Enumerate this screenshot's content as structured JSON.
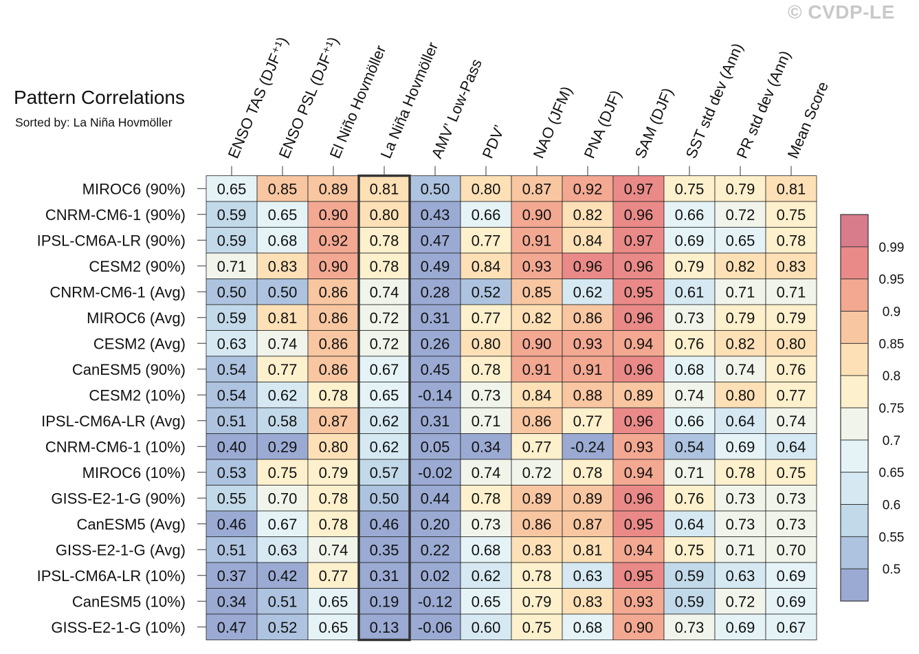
{
  "watermark": "© CVDP-LE",
  "chart_data": {
    "type": "heatmap",
    "title": "Pattern Correlations",
    "subtitle": "Sorted by: La Niña Hovmöller",
    "highlighted_column": "La Niña Hovmöller",
    "columns": [
      "ENSO TAS (DJF⁺¹)",
      "ENSO PSL (DJF⁺¹)",
      "El Niño Hovmöller",
      "La Niña Hovmöller",
      "AMV’ Low-Pass",
      "PDV’",
      "NAO (JFM)",
      "PNA (DJF)",
      "SAM (DJF)",
      "SST std dev (Ann)",
      "PR std dev (Ann)",
      "Mean Score"
    ],
    "rows": [
      "MIROC6 (90%)",
      "CNRM-CM6-1 (90%)",
      "IPSL-CM6A-LR (90%)",
      "CESM2 (90%)",
      "CNRM-CM6-1 (Avg)",
      "MIROC6 (Avg)",
      "CESM2 (Avg)",
      "CanESM5 (90%)",
      "CESM2 (10%)",
      "IPSL-CM6A-LR (Avg)",
      "CNRM-CM6-1 (10%)",
      "MIROC6 (10%)",
      "GISS-E2-1-G (90%)",
      "CanESM5 (Avg)",
      "GISS-E2-1-G (Avg)",
      "IPSL-CM6A-LR (10%)",
      "CanESM5 (10%)",
      "GISS-E2-1-G (10%)"
    ],
    "values": [
      [
        "0.65",
        "0.85",
        "0.89",
        "0.81",
        "0.50",
        "0.80",
        "0.87",
        "0.92",
        "0.97",
        "0.75",
        "0.79",
        "0.81"
      ],
      [
        "0.59",
        "0.65",
        "0.90",
        "0.80",
        "0.43",
        "0.66",
        "0.90",
        "0.82",
        "0.96",
        "0.66",
        "0.72",
        "0.75"
      ],
      [
        "0.59",
        "0.68",
        "0.92",
        "0.78",
        "0.47",
        "0.77",
        "0.91",
        "0.84",
        "0.97",
        "0.69",
        "0.65",
        "0.78"
      ],
      [
        "0.71",
        "0.83",
        "0.90",
        "0.78",
        "0.49",
        "0.84",
        "0.93",
        "0.96",
        "0.96",
        "0.79",
        "0.82",
        "0.83"
      ],
      [
        "0.50",
        "0.50",
        "0.86",
        "0.74",
        "0.28",
        "0.52",
        "0.85",
        "0.62",
        "0.95",
        "0.61",
        "0.71",
        "0.71"
      ],
      [
        "0.59",
        "0.81",
        "0.86",
        "0.72",
        "0.31",
        "0.77",
        "0.82",
        "0.86",
        "0.96",
        "0.73",
        "0.79",
        "0.79"
      ],
      [
        "0.63",
        "0.74",
        "0.86",
        "0.72",
        "0.26",
        "0.80",
        "0.90",
        "0.93",
        "0.94",
        "0.76",
        "0.82",
        "0.80"
      ],
      [
        "0.54",
        "0.77",
        "0.86",
        "0.67",
        "0.45",
        "0.78",
        "0.91",
        "0.91",
        "0.96",
        "0.68",
        "0.74",
        "0.76"
      ],
      [
        "0.54",
        "0.62",
        "0.78",
        "0.65",
        "-0.14",
        "0.73",
        "0.84",
        "0.88",
        "0.89",
        "0.74",
        "0.80",
        "0.77"
      ],
      [
        "0.51",
        "0.58",
        "0.87",
        "0.62",
        "0.31",
        "0.71",
        "0.86",
        "0.77",
        "0.96",
        "0.66",
        "0.64",
        "0.74"
      ],
      [
        "0.40",
        "0.29",
        "0.80",
        "0.62",
        "0.05",
        "0.34",
        "0.77",
        "-0.24",
        "0.93",
        "0.54",
        "0.69",
        "0.64"
      ],
      [
        "0.53",
        "0.75",
        "0.79",
        "0.57",
        "-0.02",
        "0.74",
        "0.72",
        "0.78",
        "0.94",
        "0.71",
        "0.78",
        "0.75"
      ],
      [
        "0.55",
        "0.70",
        "0.78",
        "0.50",
        "0.44",
        "0.78",
        "0.89",
        "0.89",
        "0.96",
        "0.76",
        "0.73",
        "0.73"
      ],
      [
        "0.46",
        "0.67",
        "0.78",
        "0.46",
        "0.20",
        "0.73",
        "0.86",
        "0.87",
        "0.95",
        "0.64",
        "0.73",
        "0.73"
      ],
      [
        "0.51",
        "0.63",
        "0.74",
        "0.35",
        "0.22",
        "0.68",
        "0.83",
        "0.81",
        "0.94",
        "0.75",
        "0.71",
        "0.70"
      ],
      [
        "0.37",
        "0.42",
        "0.77",
        "0.31",
        "0.02",
        "0.62",
        "0.78",
        "0.63",
        "0.95",
        "0.59",
        "0.63",
        "0.69"
      ],
      [
        "0.34",
        "0.51",
        "0.65",
        "0.19",
        "-0.12",
        "0.65",
        "0.79",
        "0.83",
        "0.93",
        "0.59",
        "0.72",
        "0.69"
      ],
      [
        "0.47",
        "0.52",
        "0.65",
        "0.13",
        "-0.06",
        "0.60",
        "0.75",
        "0.68",
        "0.90",
        "0.73",
        "0.69",
        "0.67"
      ]
    ],
    "colorbar": {
      "boundaries": [
        0.5,
        0.55,
        0.6,
        0.65,
        0.7,
        0.75,
        0.8,
        0.85,
        0.9,
        0.95,
        0.99
      ],
      "labels": [
        "0.5",
        "0.55",
        "0.6",
        "0.65",
        "0.7",
        "0.75",
        "0.8",
        "0.85",
        "0.9",
        "0.95",
        "0.99"
      ],
      "colors": [
        "#9aaad3",
        "#adc3df",
        "#c2d9e9",
        "#d6e9f2",
        "#e5f3f7",
        "#f1f4ea",
        "#fdf0cc",
        "#fde0b6",
        "#f8c6a1",
        "#f3a892",
        "#e98a88",
        "#d87c8c"
      ]
    }
  }
}
